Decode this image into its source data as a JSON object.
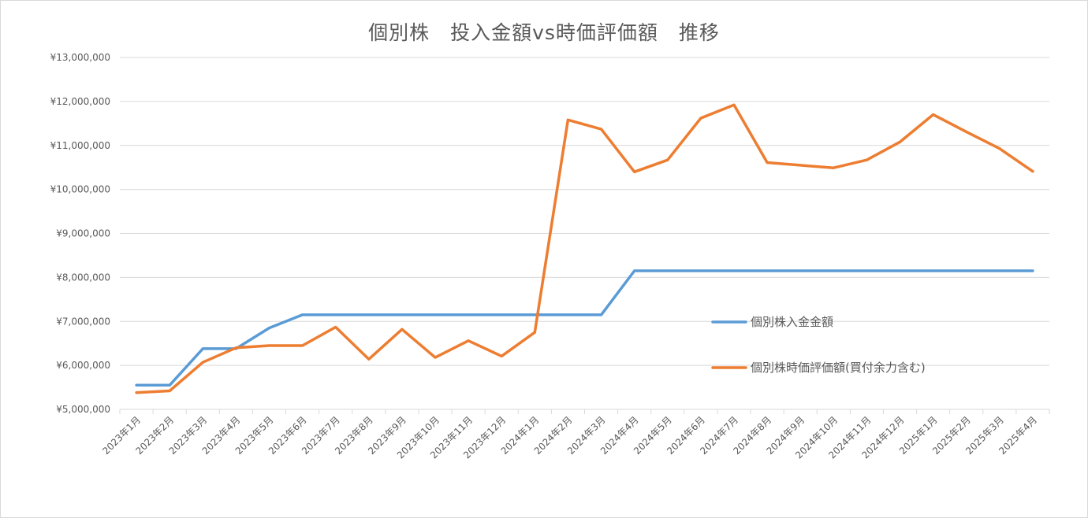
{
  "chart_data": {
    "type": "line",
    "title": "個別株　投入金額vs時価評価額　推移",
    "xlabel": "",
    "ylabel": "",
    "ylim": [
      5000000,
      13000000
    ],
    "yticks": [
      5000000,
      6000000,
      7000000,
      8000000,
      9000000,
      10000000,
      11000000,
      12000000,
      13000000
    ],
    "ytick_labels": [
      "¥5,000,000",
      "¥6,000,000",
      "¥7,000,000",
      "¥8,000,000",
      "¥9,000,000",
      "¥10,000,000",
      "¥11,000,000",
      "¥12,000,000",
      "¥13,000,000"
    ],
    "grid": true,
    "legend_position": "inside-right",
    "categories": [
      "2023年1月",
      "2023年2月",
      "2023年3月",
      "2023年4月",
      "2023年5月",
      "2023年6月",
      "2023年7月",
      "2023年8月",
      "2023年9月",
      "2023年10月",
      "2023年11月",
      "2023年12月",
      "2024年1月",
      "2024年2月",
      "2024年3月",
      "2024年4月",
      "2024年5月",
      "2024年6月",
      "2024年7月",
      "2024年8月",
      "2024年9月",
      "2024年10月",
      "2024年11月",
      "2024年12月",
      "2025年1月",
      "2025年2月",
      "2025年3月",
      "2025年4月"
    ],
    "series": [
      {
        "name": "個別株入金金額",
        "color": "#5b9bd5",
        "values": [
          5550000,
          5550000,
          6380000,
          6380000,
          6850000,
          7150000,
          7150000,
          7150000,
          7150000,
          7150000,
          7150000,
          7150000,
          7150000,
          7150000,
          7150000,
          8150000,
          8150000,
          8150000,
          8150000,
          8150000,
          8150000,
          8150000,
          8150000,
          8150000,
          8150000,
          8150000,
          8150000,
          8150000
        ]
      },
      {
        "name": "個別株時価評価額(買付余力含む)",
        "color": "#ed7d31",
        "values": [
          5380000,
          5420000,
          6070000,
          6400000,
          6450000,
          6450000,
          6870000,
          6140000,
          6820000,
          6180000,
          6560000,
          6210000,
          6750000,
          11580000,
          11370000,
          10400000,
          10670000,
          11620000,
          11920000,
          10610000,
          10550000,
          10490000,
          10670000,
          11080000,
          11700000,
          11310000,
          10930000,
          10410000
        ]
      }
    ]
  },
  "colors": {
    "gridline": "#d9d9d9",
    "axis_text": "#595959",
    "border": "#d9d9d9"
  }
}
